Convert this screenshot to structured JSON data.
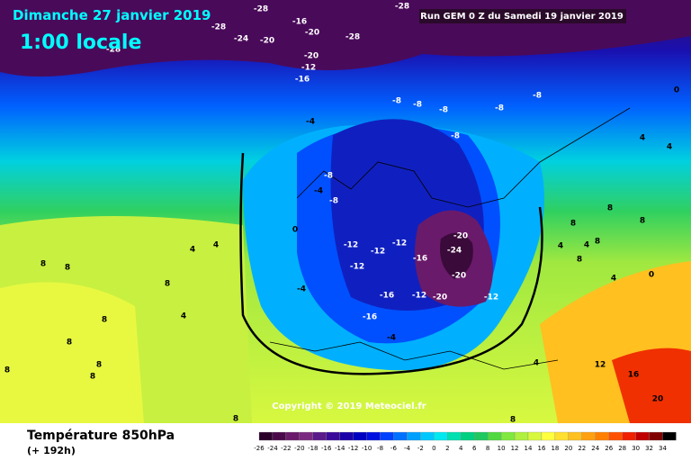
{
  "header": {
    "title": "Dimanche 27 janvier 2019",
    "time": "1:00 locale",
    "run": "Run GEM 0 Z du Samedi 19 janvier 2019"
  },
  "map": {
    "copyright": "Copyright © 2019 Meteociel.fr",
    "labels": [
      -28,
      -16,
      -20,
      -28,
      -24,
      -20,
      -28,
      -28,
      -28,
      -20,
      -12,
      -16,
      -8,
      -8,
      -8,
      -8,
      -8,
      -8,
      -4,
      -8,
      -4,
      -8,
      0,
      -12,
      -12,
      -12,
      -12,
      -16,
      -20,
      -24,
      -20,
      -16,
      -12,
      -20,
      -12,
      -16,
      -4,
      -4,
      4,
      4,
      8,
      8,
      8,
      4,
      8,
      8,
      8,
      8,
      8,
      12,
      16,
      20,
      8,
      8,
      4,
      4,
      8,
      8,
      8,
      0,
      4,
      4,
      4,
      0,
      8,
      8,
      4
    ]
  },
  "footer": {
    "title": "Température 850hPa",
    "lead": "(+ 192h)"
  },
  "scale": {
    "labels": [
      -26,
      -24,
      -22,
      -20,
      -18,
      -16,
      -14,
      -12,
      -10,
      -8,
      -6,
      -4,
      -2,
      0,
      2,
      4,
      6,
      8,
      10,
      12,
      14,
      16,
      18,
      20,
      22,
      24,
      26,
      28,
      30,
      32,
      34
    ],
    "colors": [
      "#2a002a",
      "#4a0a4a",
      "#6a1a6a",
      "#7a2a80",
      "#5a1a8a",
      "#3a0a9a",
      "#1a00a8",
      "#0000c0",
      "#0010e0",
      "#0040ff",
      "#0070ff",
      "#00a0ff",
      "#00c8ff",
      "#00e8f0",
      "#00e0b0",
      "#00d080",
      "#20c860",
      "#50d840",
      "#80e840",
      "#b0f040",
      "#d8f840",
      "#ffff40",
      "#ffe030",
      "#ffc020",
      "#ffa010",
      "#ff8000",
      "#ff5000",
      "#f02000",
      "#c00000",
      "#800000",
      "#000000"
    ]
  }
}
